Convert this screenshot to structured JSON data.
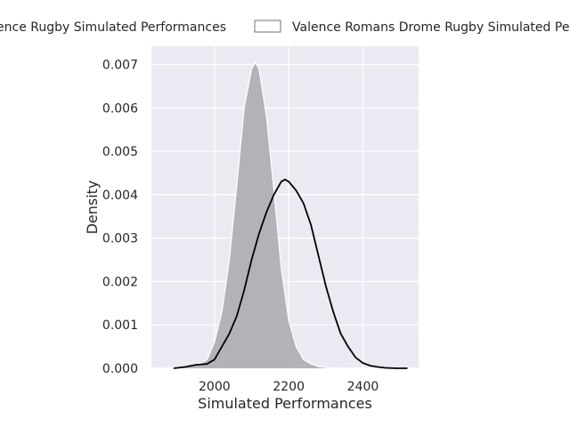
{
  "chart_data": {
    "type": "area",
    "title": "",
    "xlabel": "Simulated Performances",
    "ylabel": "Density",
    "xlim": [
      1830,
      2550
    ],
    "ylim": [
      0,
      0.00742
    ],
    "x_ticks": [
      2000,
      2200,
      2400
    ],
    "x_tick_labels": [
      "2000",
      "2200",
      "2400"
    ],
    "y_ticks": [
      0,
      0.001,
      0.002,
      0.003,
      0.004,
      0.005,
      0.006,
      0.007
    ],
    "y_tick_labels": [
      "0.000",
      "0.001",
      "0.002",
      "0.003",
      "0.004",
      "0.005",
      "0.006",
      "0.007"
    ],
    "grid": true,
    "legend_position": "top",
    "colors": {
      "plot_bg": "#eaeaf2",
      "grid": "#ffffff",
      "fill": "#a9a8ac",
      "line": "#000000",
      "legend_edge": "#6f6f6f"
    },
    "series": [
      {
        "name": "Provence Rugby Simulated Performances",
        "legend_label": "rence Rugby Simulated Performances",
        "style": "filled",
        "x": [
          1870,
          1900,
          1930,
          1960,
          1980,
          2000,
          2020,
          2040,
          2060,
          2080,
          2100,
          2110,
          2120,
          2140,
          2160,
          2180,
          2200,
          2220,
          2240,
          2260,
          2280,
          2300,
          2330
        ],
        "y": [
          0,
          2e-05,
          5e-05,
          0.0001,
          0.0002,
          0.0006,
          0.0013,
          0.0025,
          0.0042,
          0.006,
          0.0069,
          0.00705,
          0.0069,
          0.0058,
          0.0041,
          0.0023,
          0.0011,
          0.0005,
          0.0002,
          0.0001,
          4e-05,
          2e-05,
          0
        ]
      },
      {
        "name": "Valence Romans Drome Rugby Simulated Performances",
        "legend_label": "Valence Romans Drome Rugby Simulated Per",
        "style": "line",
        "x": [
          1890,
          1920,
          1950,
          1980,
          2000,
          2020,
          2040,
          2060,
          2080,
          2100,
          2120,
          2140,
          2160,
          2180,
          2190,
          2200,
          2220,
          2240,
          2260,
          2280,
          2300,
          2320,
          2340,
          2360,
          2380,
          2400,
          2420,
          2440,
          2460,
          2490,
          2520
        ],
        "y": [
          0,
          3e-05,
          8e-05,
          0.0001,
          0.0002,
          0.0005,
          0.0008,
          0.0012,
          0.0018,
          0.0025,
          0.0031,
          0.0036,
          0.004,
          0.0043,
          0.00435,
          0.0043,
          0.0041,
          0.0038,
          0.0033,
          0.0026,
          0.0019,
          0.0013,
          0.0008,
          0.0005,
          0.00025,
          0.00012,
          6e-05,
          3e-05,
          1e-05,
          0,
          0
        ]
      }
    ]
  }
}
